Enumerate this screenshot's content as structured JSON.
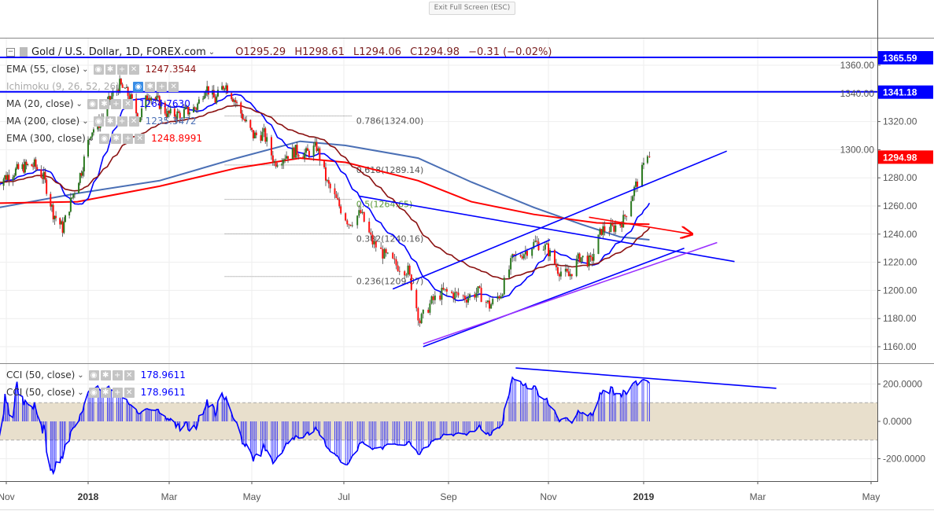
{
  "toolbar": {
    "exit_fullscreen": "Exit Full Screen (ESC)"
  },
  "header": {
    "collapse": "−",
    "symbol": "Gold / U.S. Dollar, 1D, FOREX.com",
    "open": "O1295.29",
    "high": "H1298.61",
    "low": "L1294.06",
    "close": "C1294.98",
    "change": "−0.31 (−0.02%)"
  },
  "indicators": [
    {
      "label": "EMA (55, close)",
      "value": "1247.3544",
      "color": "#8b1111"
    },
    {
      "label": "Ichimoku (9, 26, 52, 26)",
      "value": "",
      "color": "#aaaaaa"
    },
    {
      "label": "MA (20, close)",
      "value": "1264.7630",
      "color": "#0000ff"
    },
    {
      "label": "MA (200, close)",
      "value": "1235.3472",
      "color": "#4a6fb5"
    },
    {
      "label": "EMA (300, close)",
      "value": "1248.8991",
      "color": "#ff0000"
    }
  ],
  "cci_legend": [
    {
      "label": "CCI (50, close)",
      "value": "178.9611",
      "color": "#0000ff"
    },
    {
      "label": "CCI (50, close)",
      "value": "178.9611",
      "color": "#0000ff"
    }
  ],
  "icons": [
    "eye-icon",
    "gear-icon",
    "plus-icon",
    "close-icon"
  ],
  "chart_data": [
    {
      "type": "candlestick",
      "x_ticks": [
        {
          "label": "Nov",
          "date": "2017-11-01",
          "bold": false
        },
        {
          "label": "2018",
          "date": "2018-01-01",
          "bold": true
        },
        {
          "label": "Mar",
          "date": "2018-03-01",
          "bold": false
        },
        {
          "label": "May",
          "date": "2018-05-01",
          "bold": false
        },
        {
          "label": "Jul",
          "date": "2018-07-01",
          "bold": false
        },
        {
          "label": "Sep",
          "date": "2018-09-01",
          "bold": false
        },
        {
          "label": "Nov",
          "date": "2018-11-01",
          "bold": false
        },
        {
          "label": "2019",
          "date": "2019-01-01",
          "bold": true
        },
        {
          "label": "Mar",
          "date": "2019-03-01",
          "bold": false
        },
        {
          "label": "May",
          "date": "2019-05-01",
          "bold": false
        }
      ],
      "y_ticks": [
        "1160.00",
        "1180.00",
        "1200.00",
        "1220.00",
        "1240.00",
        "1260.00",
        "1280.00",
        "1300.00",
        "1320.00",
        "1340.00",
        "1360.00"
      ],
      "grid": true,
      "up_color": "#2b7a1f",
      "down_color": "#ff1010",
      "closes": [
        [
          "2017-10-25",
          1277
        ],
        [
          "2017-11-01",
          1281
        ],
        [
          "2017-11-08",
          1285
        ],
        [
          "2017-11-15",
          1288
        ],
        [
          "2017-11-22",
          1289
        ],
        [
          "2017-11-29",
          1280
        ],
        [
          "2017-12-06",
          1255
        ],
        [
          "2017-12-13",
          1244
        ],
        [
          "2017-12-20",
          1266
        ],
        [
          "2017-12-27",
          1285
        ],
        [
          "2018-01-03",
          1313
        ],
        [
          "2018-01-10",
          1320
        ],
        [
          "2018-01-17",
          1336
        ],
        [
          "2018-01-24",
          1346
        ],
        [
          "2018-01-31",
          1338
        ],
        [
          "2018-02-07",
          1322
        ],
        [
          "2018-02-14",
          1340
        ],
        [
          "2018-02-21",
          1334
        ],
        [
          "2018-02-28",
          1325
        ],
        [
          "2018-03-07",
          1325
        ],
        [
          "2018-03-14",
          1327
        ],
        [
          "2018-03-21",
          1330
        ],
        [
          "2018-03-28",
          1345
        ],
        [
          "2018-04-04",
          1335
        ],
        [
          "2018-04-11",
          1347
        ],
        [
          "2018-04-18",
          1336
        ],
        [
          "2018-04-25",
          1322
        ],
        [
          "2018-05-02",
          1310
        ],
        [
          "2018-05-09",
          1311
        ],
        [
          "2018-05-16",
          1291
        ],
        [
          "2018-05-23",
          1296
        ],
        [
          "2018-05-30",
          1299
        ],
        [
          "2018-06-06",
          1297
        ],
        [
          "2018-06-13",
          1302
        ],
        [
          "2018-06-20",
          1276
        ],
        [
          "2018-06-27",
          1262
        ],
        [
          "2018-07-04",
          1248
        ],
        [
          "2018-07-11",
          1255
        ],
        [
          "2018-07-18",
          1234
        ],
        [
          "2018-07-25",
          1225
        ],
        [
          "2018-08-01",
          1218
        ],
        [
          "2018-08-08",
          1214
        ],
        [
          "2018-08-15",
          1178
        ],
        [
          "2018-08-22",
          1192
        ],
        [
          "2018-08-29",
          1199
        ],
        [
          "2018-09-05",
          1197
        ],
        [
          "2018-09-12",
          1195
        ],
        [
          "2018-09-19",
          1199
        ],
        [
          "2018-09-26",
          1189
        ],
        [
          "2018-10-03",
          1198
        ],
        [
          "2018-10-10",
          1222
        ],
        [
          "2018-10-17",
          1227
        ],
        [
          "2018-10-24",
          1234
        ],
        [
          "2018-10-31",
          1230
        ],
        [
          "2018-11-07",
          1215
        ],
        [
          "2018-11-14",
          1210
        ],
        [
          "2018-11-21",
          1224
        ],
        [
          "2018-11-28",
          1220
        ],
        [
          "2018-12-05",
          1243
        ],
        [
          "2018-12-12",
          1244
        ],
        [
          "2018-12-19",
          1250
        ],
        [
          "2018-12-26",
          1272
        ],
        [
          "2019-01-02",
          1290
        ]
      ],
      "last_bar": {
        "date": "2019-01-04",
        "open": 1295.29,
        "high": 1298.61,
        "low": 1294.06,
        "close": 1294.98
      },
      "series": [
        {
          "name": "MA (20, close)",
          "color": "#0000ff",
          "method": "sma",
          "period": 20
        },
        {
          "name": "EMA (55, close)",
          "color": "#8b1111",
          "method": "ema",
          "period": 55
        },
        {
          "name": "MA (200, close)",
          "color": "#4a6fb5",
          "points": [
            [
              "2017-10-27",
              1259
            ],
            [
              "2017-12-24",
              1269
            ],
            [
              "2018-02-22",
              1278
            ],
            [
              "2018-04-20",
              1294
            ],
            [
              "2018-06-02",
              1306
            ],
            [
              "2018-07-02",
              1303
            ],
            [
              "2018-08-14",
              1294
            ],
            [
              "2018-09-15",
              1277
            ],
            [
              "2018-10-23",
              1259
            ],
            [
              "2018-11-22",
              1247
            ],
            [
              "2018-12-17",
              1238
            ],
            [
              "2019-01-04",
              1236
            ]
          ]
        },
        {
          "name": "EMA (300, close)",
          "color": "#ff0000",
          "points": [
            [
              "2017-10-27",
              1262
            ],
            [
              "2017-12-24",
              1263
            ],
            [
              "2018-02-22",
              1274
            ],
            [
              "2018-04-20",
              1287
            ],
            [
              "2018-06-02",
              1294
            ],
            [
              "2018-07-02",
              1291
            ],
            [
              "2018-08-14",
              1278
            ],
            [
              "2018-09-15",
              1263
            ],
            [
              "2018-10-23",
              1254
            ],
            [
              "2018-12-02",
              1248
            ],
            [
              "2019-01-04",
              1247
            ]
          ]
        }
      ],
      "horizontal_lines": [
        {
          "price": 1365.59,
          "label": "1365.59",
          "color": "#0000ff"
        },
        {
          "price": 1341.18,
          "label": "1341.18",
          "color": "#0000ff"
        }
      ],
      "last_price_label": {
        "label": "1294.98",
        "color": "#ff0000"
      },
      "fibonacci": {
        "from": "2018-04-11",
        "to": "2018-07-06",
        "levels": [
          {
            "price": 1324.0,
            "label": "0.786(1324.00)",
            "color": "#555555"
          },
          {
            "price": 1289.14,
            "label": "0.618(1289.14)",
            "color": "#555555"
          },
          {
            "price": 1264.65,
            "label": "0.5(1264.65)",
            "color": "#5a9a3a"
          },
          {
            "price": 1240.16,
            "label": "0.382(1240.16)",
            "color": "#555555"
          },
          {
            "price": 1209.87,
            "label": "0.236(1209.87)",
            "color": "#555555"
          }
        ]
      },
      "trendlines": [
        {
          "from": [
            "2018-07-30",
            1201
          ],
          "to": [
            "2019-02-13",
            1299
          ],
          "color": "#0000ff"
        },
        {
          "from": [
            "2018-07-10",
            1267
          ],
          "to": [
            "2019-02-17",
            1220.5
          ],
          "color": "#0000ff"
        },
        {
          "from": [
            "2018-08-17",
            1160
          ],
          "to": [
            "2019-01-22",
            1230
          ],
          "color": "#0000ff"
        },
        {
          "from": [
            "2018-08-17",
            1162
          ],
          "to": [
            "2019-02-08",
            1234
          ],
          "color": "#9b30ff"
        },
        {
          "from": [
            "2018-10-10",
            1224
          ],
          "to": [
            "2018-11-02",
            1236
          ],
          "color": "#0000ff"
        },
        {
          "from": [
            "2018-11-27",
            1252
          ],
          "to": [
            "2019-01-26",
            1240
          ],
          "color": "#ff0000",
          "arrow": true
        }
      ]
    },
    {
      "type": "bar",
      "name": "CCI (50, close)",
      "period": 50,
      "color": "#0000ff",
      "y_ticks": [
        "200.0000",
        "0.0000",
        "-200.0000"
      ],
      "band": [
        -100,
        100
      ],
      "band_color": "#e8dfcc",
      "trendlines": [
        {
          "from": [
            "2018-10-12",
            286
          ],
          "to": [
            "2019-03-11",
            177
          ],
          "color": "#0000ff"
        }
      ]
    }
  ]
}
